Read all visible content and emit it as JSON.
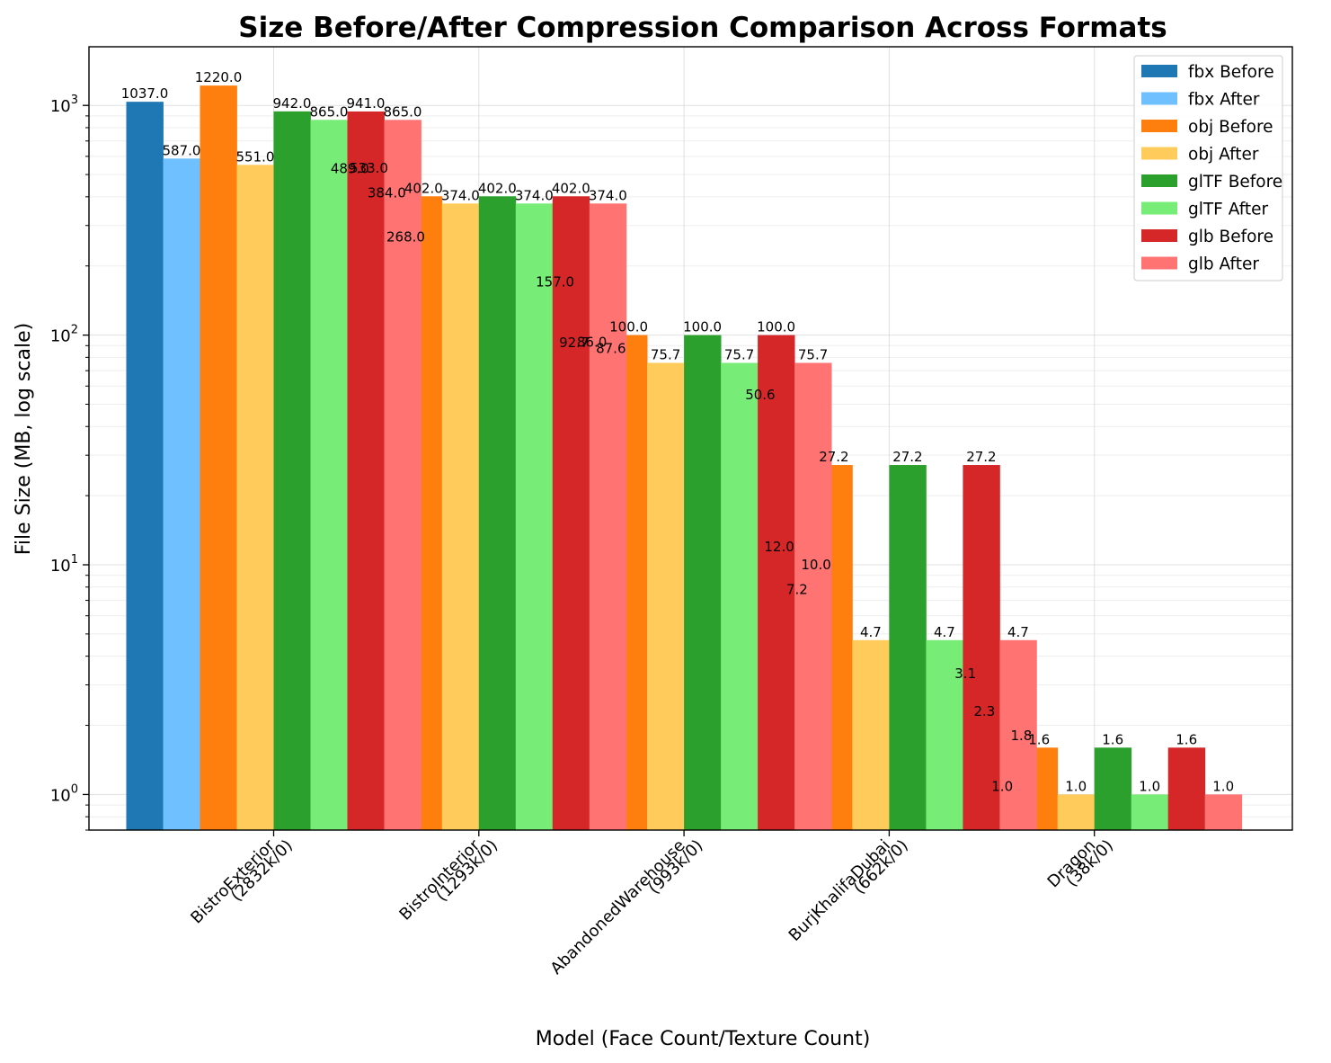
{
  "chart_data": {
    "type": "bar",
    "title": "Size Before/After Compression Comparison Across Formats",
    "xlabel": "Model (Face Count/Texture Count)",
    "ylabel": "File Size (MB, log scale)",
    "yscale": "log",
    "ylim": [
      0.7,
      1800
    ],
    "yticks": [
      {
        "value": 1,
        "base": "10",
        "exp": "0"
      },
      {
        "value": 10,
        "base": "10",
        "exp": "1"
      },
      {
        "value": 100,
        "base": "10",
        "exp": "2"
      },
      {
        "value": 1000,
        "base": "10",
        "exp": "3"
      }
    ],
    "grid": true,
    "legend_position": "top-right",
    "categories": [
      [
        "BistroExterior",
        "(2832k/0)"
      ],
      [
        "BistroInterior",
        "(1293k/0)"
      ],
      [
        "AbandonedWarehouse",
        "(993k/0)"
      ],
      [
        "BurjKhalifaDubai",
        "(662k/0)"
      ],
      [
        "Dragon",
        "(38k/0)"
      ]
    ],
    "series": [
      {
        "name": "fbx Before",
        "color": "#1f77b4",
        "values": [
          1037.0,
          489.0,
          157.0,
          50.6,
          3.1
        ],
        "labels": [
          "1037.0",
          "489.0",
          "157.0",
          "50.6",
          "3.1"
        ]
      },
      {
        "name": "fbx After",
        "color": "#6ec0ff",
        "values": [
          587.0,
          384.0,
          86.0,
          7.2,
          1.0
        ],
        "labels": [
          "587.0",
          "384.0",
          "86.0",
          "7.2",
          "1.0"
        ]
      },
      {
        "name": "obj Before",
        "color": "#ff7f0e",
        "values": [
          1220.0,
          402.0,
          100.0,
          27.2,
          1.6
        ],
        "labels": [
          "1220.0",
          "402.0",
          "100.0",
          "27.2",
          "1.6"
        ]
      },
      {
        "name": "obj After",
        "color": "#ffcc5c",
        "values": [
          551.0,
          374.0,
          75.7,
          4.7,
          1.0
        ],
        "labels": [
          "551.0",
          "374.0",
          "75.7",
          "4.7",
          "1.0"
        ]
      },
      {
        "name": "glTF Before",
        "color": "#2ca02c",
        "values": [
          942.0,
          402.0,
          100.0,
          27.2,
          1.6
        ],
        "labels": [
          "942.0",
          "402.0",
          "100.0",
          "27.2",
          "1.6"
        ]
      },
      {
        "name": "glTF After",
        "color": "#77ec77",
        "values": [
          865.0,
          374.0,
          75.7,
          4.7,
          1.0
        ],
        "labels": [
          "865.0",
          "374.0",
          "75.7",
          "4.7",
          "1.0"
        ]
      },
      {
        "name": "glb Before",
        "color": "#d62728",
        "values": [
          941.0,
          402.0,
          100.0,
          27.2,
          1.6
        ],
        "labels": [
          "941.0",
          "402.0",
          "100.0",
          "27.2",
          "1.6"
        ]
      },
      {
        "name": "glb After",
        "color": "#ff7373",
        "values": [
          865.0,
          374.0,
          75.7,
          4.7,
          1.0
        ],
        "labels": [
          "865.0",
          "374.0",
          "75.7",
          "4.7",
          "1.0"
        ]
      }
    ],
    "annotations": [
      {
        "text": "533.0",
        "value": 533.0,
        "category": 0
      },
      {
        "text": "268.0",
        "value": 268.0,
        "category": 0
      },
      {
        "text": "92.7",
        "value": 92.7,
        "category": 1
      },
      {
        "text": "87.6",
        "value": 87.6,
        "category": 1
      },
      {
        "text": "12.0",
        "value": 12.0,
        "category": 2
      },
      {
        "text": "10.0",
        "value": 10.0,
        "category": 2
      },
      {
        "text": "2.3",
        "value": 2.3,
        "category": 3
      },
      {
        "text": "1.8",
        "value": 1.8,
        "category": 3
      }
    ]
  }
}
